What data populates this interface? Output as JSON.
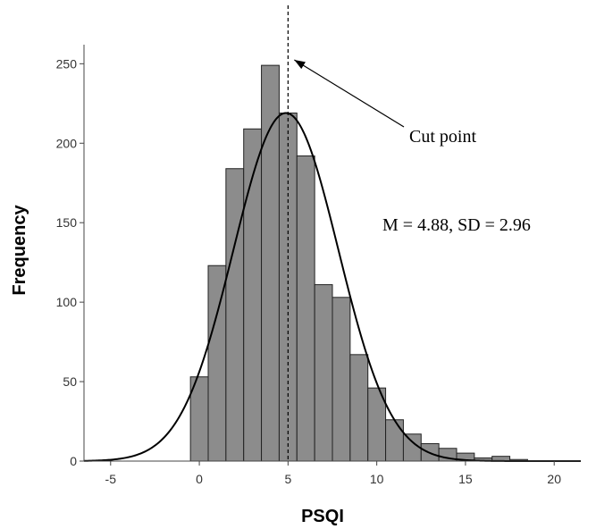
{
  "chart_data": {
    "type": "bar",
    "subtype": "histogram",
    "xlabel": "PSQI",
    "ylabel": "Frequency",
    "xlim": [
      -6.5,
      21.5
    ],
    "ylim": [
      0,
      262
    ],
    "xticks": [
      -5,
      0,
      5,
      10,
      15,
      20
    ],
    "yticks": [
      0,
      50,
      100,
      150,
      200,
      250
    ],
    "bin_width": 1,
    "bins": [
      {
        "x": 0,
        "value": 53
      },
      {
        "x": 1,
        "value": 123
      },
      {
        "x": 2,
        "value": 184
      },
      {
        "x": 3,
        "value": 209
      },
      {
        "x": 4,
        "value": 249
      },
      {
        "x": 5,
        "value": 219
      },
      {
        "x": 6,
        "value": 192
      },
      {
        "x": 7,
        "value": 111
      },
      {
        "x": 8,
        "value": 103
      },
      {
        "x": 9,
        "value": 67
      },
      {
        "x": 10,
        "value": 46
      },
      {
        "x": 11,
        "value": 26
      },
      {
        "x": 12,
        "value": 17
      },
      {
        "x": 13,
        "value": 11
      },
      {
        "x": 14,
        "value": 8
      },
      {
        "x": 15,
        "value": 5
      },
      {
        "x": 16,
        "value": 2
      },
      {
        "x": 17,
        "value": 3
      },
      {
        "x": 18,
        "value": 1
      }
    ],
    "normal_curve": {
      "mean": 4.88,
      "sd": 2.96,
      "peak": 219
    },
    "cut_point": 5,
    "annotations": {
      "cut_point_label": "Cut point",
      "stats_label": "M = 4.88, SD = 2.96"
    },
    "colors": {
      "bar_fill": "#8c8c8c",
      "bar_stroke": "#222222",
      "curve": "#000000",
      "axis": "#444444"
    },
    "grid": false,
    "legend": "none"
  }
}
